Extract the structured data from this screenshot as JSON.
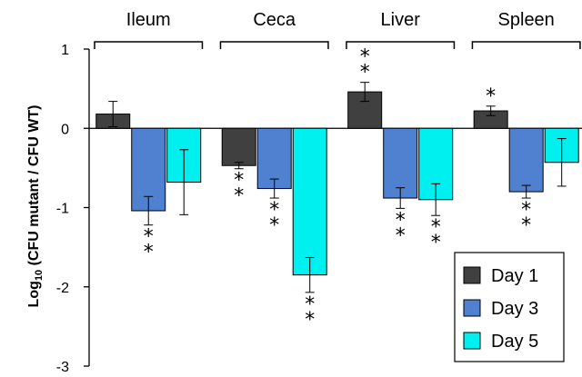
{
  "chart_data": {
    "type": "bar",
    "ylabel_main": "Log",
    "ylabel_sub": "10",
    "ylabel_rest": " (CFU mutant / CFU WT)",
    "ylim": [
      -3,
      1
    ],
    "yticks": [
      1,
      0,
      -1,
      -2,
      -3
    ],
    "grid": false,
    "legend_position": "bottom-right",
    "categories": [
      "Ileum",
      "Ceca",
      "Liver",
      "Spleen"
    ],
    "series": [
      {
        "name": "Day 1",
        "color": "#404040",
        "values": [
          0.18,
          -0.47,
          0.46,
          0.22
        ],
        "errors": [
          0.16,
          0.04,
          0.12,
          0.06
        ],
        "sig": [
          "",
          "**",
          "**",
          "*"
        ]
      },
      {
        "name": "Day 3",
        "color": "#4f81d0",
        "values": [
          -1.04,
          -0.76,
          -0.88,
          -0.8
        ],
        "errors": [
          0.18,
          0.12,
          0.13,
          0.08
        ],
        "sig": [
          "**",
          "**",
          "**",
          "**"
        ]
      },
      {
        "name": "Day 5",
        "color": "#00f0f0",
        "values": [
          -0.68,
          -1.85,
          -0.9,
          -0.43
        ],
        "errors": [
          0.41,
          0.22,
          0.2,
          0.3
        ],
        "sig": [
          "",
          "**",
          "**",
          ""
        ]
      }
    ]
  }
}
